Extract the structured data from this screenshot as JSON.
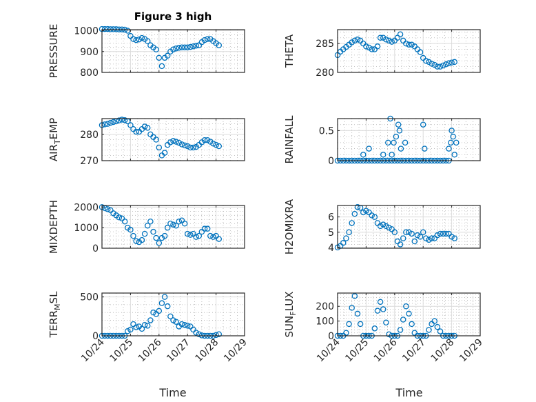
{
  "figure": {
    "title": "Figure 3 high",
    "xlabel": "Time",
    "marker_color": "#0072BD"
  },
  "chart_data": [
    {
      "type": "scatter",
      "name": "pressure",
      "ylabel": {
        "main": "PRESSURE",
        "sub": "",
        "rest": ""
      },
      "ylim": [
        800,
        1005
      ],
      "yticks": [
        800,
        900,
        1000
      ],
      "ytick_labels": [
        "800",
        "900",
        "1000"
      ],
      "x": [
        0,
        0.1,
        0.2,
        0.3,
        0.4,
        0.5,
        0.6,
        0.7,
        0.8,
        0.9,
        1.0,
        1.1,
        1.2,
        1.3,
        1.4,
        1.5,
        1.6,
        1.7,
        1.8,
        1.9,
        2.0,
        2.1,
        2.2,
        2.3,
        2.4,
        2.5,
        2.6,
        2.7,
        2.8,
        2.9,
        3.0,
        3.1,
        3.2,
        3.3,
        3.4,
        3.5,
        3.6,
        3.7,
        3.8,
        3.9,
        4.0,
        4.1
      ],
      "y": [
        1008,
        1008,
        1008,
        1007,
        1007,
        1007,
        1006,
        1006,
        1005,
        1000,
        975,
        960,
        955,
        958,
        965,
        960,
        950,
        930,
        920,
        910,
        870,
        830,
        870,
        880,
        900,
        910,
        915,
        918,
        920,
        920,
        920,
        922,
        925,
        928,
        930,
        945,
        955,
        960,
        960,
        950,
        940,
        930
      ]
    },
    {
      "type": "scatter",
      "name": "theta",
      "ylabel": {
        "main": "THETA",
        "sub": "",
        "rest": ""
      },
      "ylim": [
        280,
        287.4
      ],
      "yticks": [
        280,
        285
      ],
      "ytick_labels": [
        "280",
        "285"
      ],
      "x": [
        0,
        0.1,
        0.2,
        0.3,
        0.4,
        0.5,
        0.6,
        0.7,
        0.8,
        0.9,
        1.0,
        1.1,
        1.2,
        1.3,
        1.4,
        1.5,
        1.6,
        1.7,
        1.8,
        1.9,
        2.0,
        2.1,
        2.2,
        2.3,
        2.4,
        2.5,
        2.6,
        2.7,
        2.8,
        2.9,
        3.0,
        3.1,
        3.2,
        3.3,
        3.4,
        3.5,
        3.6,
        3.7,
        3.8,
        3.9,
        4.0,
        4.1
      ],
      "y": [
        283,
        283.6,
        284,
        284.4,
        284.8,
        285.2,
        285.5,
        285.7,
        285.5,
        285,
        284.5,
        284.3,
        284,
        284,
        284.5,
        286,
        286,
        285.7,
        285.5,
        285.3,
        285.5,
        286,
        286.6,
        285.5,
        285,
        284.8,
        284.8,
        284.5,
        284,
        283.5,
        282.5,
        282,
        281.8,
        281.5,
        281.3,
        281,
        281,
        281.2,
        281.4,
        281.6,
        281.7,
        281.8
      ]
    },
    {
      "type": "scatter",
      "name": "air-temp",
      "ylabel": {
        "main": "AIR",
        "sub": "T",
        "rest": "EMP"
      },
      "ylim": [
        270,
        286
      ],
      "yticks": [
        270,
        280
      ],
      "ytick_labels": [
        "270",
        "280"
      ],
      "x": [
        0,
        0.1,
        0.2,
        0.3,
        0.4,
        0.5,
        0.6,
        0.7,
        0.8,
        0.9,
        1.0,
        1.1,
        1.2,
        1.3,
        1.4,
        1.5,
        1.6,
        1.7,
        1.8,
        1.9,
        2.0,
        2.1,
        2.2,
        2.3,
        2.4,
        2.5,
        2.6,
        2.7,
        2.8,
        2.9,
        3.0,
        3.1,
        3.2,
        3.3,
        3.4,
        3.5,
        3.6,
        3.7,
        3.8,
        3.9,
        4.0,
        4.1
      ],
      "y": [
        283.5,
        283.8,
        284,
        284.4,
        284.7,
        285,
        285.3,
        285.6,
        285.4,
        285,
        283.5,
        282,
        281,
        281,
        282,
        283,
        282.5,
        280,
        279,
        278,
        275,
        272,
        273,
        276,
        277,
        277.5,
        277.2,
        276.8,
        276.2,
        275.8,
        275.5,
        275,
        275,
        275.2,
        276,
        277,
        277.8,
        277.8,
        277.2,
        276.5,
        276,
        275.5
      ]
    },
    {
      "type": "scatter",
      "name": "rainfall",
      "ylabel": {
        "main": "RAINFALL",
        "sub": "",
        "rest": ""
      },
      "ylim": [
        0,
        0.7
      ],
      "yticks": [
        0,
        0.5
      ],
      "ytick_labels": [
        "0",
        "0.5"
      ],
      "x": [
        0,
        0.1,
        0.2,
        0.3,
        0.4,
        0.5,
        0.6,
        0.7,
        0.8,
        0.9,
        1.0,
        1.1,
        1.2,
        1.3,
        1.4,
        1.5,
        1.6,
        1.7,
        1.8,
        1.9,
        2.0,
        2.1,
        2.2,
        2.3,
        2.4,
        2.5,
        2.6,
        2.7,
        2.8,
        2.9,
        3.0,
        3.1,
        3.2,
        3.3,
        3.4,
        3.5,
        3.6,
        3.7,
        3.8,
        3.9,
        0.9,
        1.1,
        1.6,
        1.77,
        1.85,
        1.9,
        1.97,
        2.05,
        2.13,
        2.17,
        2.22,
        2.37,
        3.0,
        3.05,
        3.9,
        3.97,
        4.0,
        4.05,
        4.1,
        4.16
      ],
      "y": [
        0,
        0,
        0,
        0,
        0,
        0,
        0,
        0,
        0,
        0,
        0,
        0,
        0,
        0,
        0,
        0,
        0,
        0,
        0,
        0,
        0,
        0,
        0,
        0,
        0,
        0,
        0,
        0,
        0,
        0,
        0,
        0,
        0,
        0,
        0,
        0,
        0,
        0,
        0,
        0,
        0.1,
        0.2,
        0.1,
        0.3,
        0.7,
        0.1,
        0.3,
        0.4,
        0.6,
        0.5,
        0.2,
        0.3,
        0.6,
        0.2,
        0.2,
        0.3,
        0.5,
        0.4,
        0.1,
        0.3
      ]
    },
    {
      "type": "scatter",
      "name": "mixdepth",
      "ylabel": {
        "main": "MIXDEPTH",
        "sub": "",
        "rest": ""
      },
      "ylim": [
        0,
        2080
      ],
      "yticks": [
        0,
        1000,
        2000
      ],
      "ytick_labels": [
        "0",
        "1000",
        "2000"
      ],
      "x": [
        0,
        0.1,
        0.2,
        0.3,
        0.4,
        0.5,
        0.6,
        0.7,
        0.8,
        0.9,
        1.0,
        1.1,
        1.2,
        1.3,
        1.4,
        1.5,
        1.6,
        1.7,
        1.8,
        1.9,
        2.0,
        2.1,
        2.2,
        2.3,
        2.4,
        2.5,
        2.6,
        2.7,
        2.8,
        2.9,
        3.0,
        3.1,
        3.2,
        3.3,
        3.4,
        3.5,
        3.6,
        3.7,
        3.8,
        3.9,
        4.0,
        4.1
      ],
      "y": [
        2000,
        1950,
        1900,
        1850,
        1700,
        1600,
        1500,
        1450,
        1300,
        1000,
        900,
        600,
        350,
        300,
        400,
        700,
        1100,
        1300,
        800,
        500,
        250,
        500,
        600,
        1000,
        1200,
        1150,
        1100,
        1300,
        1350,
        1200,
        700,
        650,
        700,
        550,
        600,
        800,
        950,
        950,
        600,
        550,
        600,
        450
      ]
    },
    {
      "type": "scatter",
      "name": "h2omixra",
      "ylabel": {
        "main": "H2OMIXRA",
        "sub": "",
        "rest": ""
      },
      "ylim": [
        3.95,
        6.75
      ],
      "yticks": [
        4,
        5,
        6
      ],
      "ytick_labels": [
        "4",
        "5",
        "6"
      ],
      "x": [
        0,
        0.1,
        0.2,
        0.3,
        0.4,
        0.5,
        0.6,
        0.7,
        0.8,
        0.9,
        1.0,
        1.1,
        1.2,
        1.3,
        1.4,
        1.5,
        1.6,
        1.7,
        1.8,
        1.9,
        2.0,
        2.1,
        2.2,
        2.3,
        2.4,
        2.5,
        2.6,
        2.7,
        2.8,
        2.9,
        3.0,
        3.1,
        3.2,
        3.3,
        3.4,
        3.5,
        3.6,
        3.7,
        3.8,
        3.9,
        4.0,
        4.1
      ],
      "y": [
        4.0,
        4.1,
        4.3,
        4.6,
        5.0,
        5.6,
        6.2,
        6.65,
        6.6,
        6.3,
        6.4,
        6.3,
        6.1,
        6.0,
        5.6,
        5.4,
        5.5,
        5.4,
        5.3,
        5.2,
        5.0,
        4.4,
        4.2,
        4.6,
        5.0,
        5.0,
        4.9,
        4.4,
        4.8,
        4.7,
        5.0,
        4.6,
        4.5,
        4.6,
        4.6,
        4.8,
        4.9,
        4.9,
        4.9,
        4.9,
        4.7,
        4.6
      ]
    },
    {
      "type": "scatter",
      "name": "terr-msl",
      "ylabel": {
        "main": "TERR",
        "sub": "M",
        "rest": "SL"
      },
      "ylim": [
        0,
        550
      ],
      "yticks": [
        0,
        500
      ],
      "ytick_labels": [
        "0",
        "500"
      ],
      "x": [
        0,
        0.1,
        0.2,
        0.3,
        0.4,
        0.5,
        0.6,
        0.7,
        0.8,
        0.9,
        1.0,
        1.1,
        1.2,
        1.3,
        1.4,
        1.5,
        1.6,
        1.7,
        1.8,
        1.9,
        2.0,
        2.1,
        2.2,
        2.3,
        2.4,
        2.5,
        2.6,
        2.7,
        2.8,
        2.9,
        3.0,
        3.1,
        3.2,
        3.3,
        3.4,
        3.5,
        3.6,
        3.7,
        3.8,
        3.9,
        4.0,
        4.1
      ],
      "y": [
        0,
        0,
        0,
        0,
        0,
        0,
        0,
        0,
        0,
        60,
        80,
        150,
        110,
        120,
        90,
        140,
        130,
        200,
        300,
        280,
        320,
        420,
        500,
        380,
        250,
        200,
        180,
        120,
        150,
        140,
        130,
        120,
        80,
        40,
        20,
        5,
        0,
        0,
        0,
        0,
        10,
        20
      ]
    },
    {
      "type": "scatter",
      "name": "sun-flux",
      "ylabel": {
        "main": "SUN",
        "sub": "F",
        "rest": "LUX"
      },
      "ylim": [
        0,
        290
      ],
      "yticks": [
        0,
        100,
        200
      ],
      "ytick_labels": [
        "0",
        "100",
        "200"
      ],
      "x": [
        0,
        0.1,
        0.2,
        0.3,
        0.4,
        0.5,
        0.6,
        0.7,
        0.8,
        0.9,
        1.0,
        1.1,
        1.2,
        1.3,
        1.4,
        1.5,
        1.6,
        1.7,
        1.8,
        1.9,
        2.0,
        2.1,
        2.2,
        2.3,
        2.4,
        2.5,
        2.6,
        2.7,
        2.8,
        2.9,
        3.0,
        3.1,
        3.2,
        3.3,
        3.4,
        3.5,
        3.6,
        3.7,
        3.8,
        3.9,
        4.0,
        4.1
      ],
      "y": [
        0,
        0,
        0,
        20,
        80,
        190,
        270,
        150,
        80,
        0,
        0,
        0,
        0,
        50,
        170,
        230,
        180,
        90,
        10,
        0,
        0,
        0,
        40,
        110,
        200,
        150,
        80,
        20,
        0,
        0,
        0,
        0,
        40,
        80,
        100,
        60,
        30,
        0,
        0,
        0,
        0,
        0
      ]
    }
  ],
  "xaxis": {
    "xlim": [
      0,
      5
    ],
    "xticks": [
      0,
      1,
      2,
      3,
      4,
      5
    ],
    "xtick_labels": [
      "10/24",
      "10/25",
      "10/26",
      "10/27",
      "10/28",
      "10/29"
    ]
  }
}
